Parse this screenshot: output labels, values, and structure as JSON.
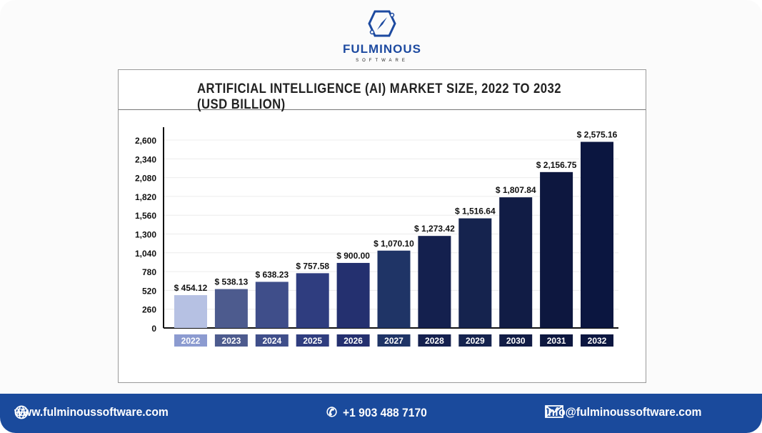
{
  "brand": {
    "name": "FULMINOUS",
    "tagline": "SOFTWARE",
    "color": "#1d4aa0"
  },
  "chart_data": {
    "type": "bar",
    "title": "ARTIFICIAL INTELLIGENCE (AI) MARKET SIZE, 2022 TO 2032 (USD BILLION)",
    "categories": [
      "2022",
      "2023",
      "2024",
      "2025",
      "2026",
      "2027",
      "2028",
      "2029",
      "2030",
      "2031",
      "2032"
    ],
    "values": [
      454.12,
      538.13,
      638.23,
      757.58,
      900.0,
      1070.1,
      1273.42,
      1516.64,
      1807.84,
      2156.75,
      2575.16
    ],
    "data_labels": [
      "$ 454.12",
      "$ 538.13",
      "$ 638.23",
      "$ 757.58",
      "$ 900.00",
      "$ 1,070.10",
      "$ 1,273.42",
      "$ 1,516.64",
      "$ 1,807.84",
      "$ 2,156.75",
      "$ 2,575.16"
    ],
    "colors": [
      "#b6c1e3",
      "#4d5b8e",
      "#3f4e8a",
      "#2f3d7f",
      "#24306f",
      "#1f3466",
      "#14204e",
      "#15234e",
      "#111c45",
      "#0d173f",
      "#0b1640"
    ],
    "label_colors": [
      "#8c9bd0",
      "#4d5b8e",
      "#3f4e8a",
      "#2f3d7f",
      "#24306f",
      "#1f3466",
      "#14204e",
      "#15234e",
      "#111c45",
      "#0d173f",
      "#0b1640"
    ],
    "yticks": [
      "0",
      "260",
      "520",
      "780",
      "1,040",
      "1,300",
      "1,560",
      "1,820",
      "2,080",
      "2,340",
      "2,600"
    ],
    "ylim": [
      0,
      2600
    ],
    "grid": true,
    "xlabel": "",
    "ylabel": ""
  },
  "footer": {
    "website": "www.fulminoussoftware.com",
    "phone": "+1 903 488 7170",
    "email": "info@fulminoussoftware.com",
    "background": "#1a4a9c"
  }
}
